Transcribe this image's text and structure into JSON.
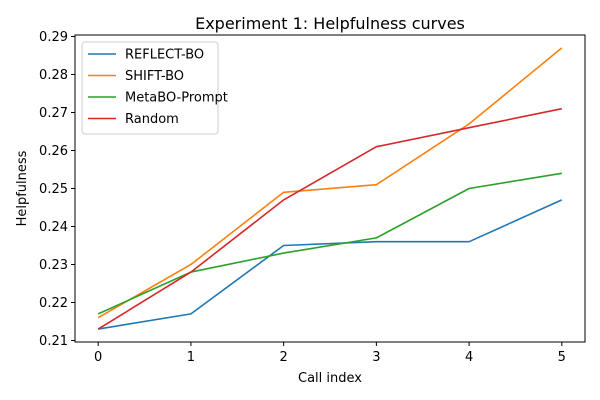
{
  "chart_data": {
    "type": "line",
    "title": "Experiment 1: Helpfulness curves",
    "xlabel": "Call index",
    "ylabel": "Helpfulness",
    "x": [
      0,
      1,
      2,
      3,
      4,
      5
    ],
    "xlim": [
      -0.25,
      5.25
    ],
    "ylim": [
      0.2096,
      0.2904
    ],
    "xticks": [
      0,
      1,
      2,
      3,
      4,
      5
    ],
    "yticks": [
      0.21,
      0.22,
      0.23,
      0.24,
      0.25,
      0.26,
      0.27,
      0.28,
      0.29
    ],
    "grid": false,
    "legend_position": "top-left",
    "series": [
      {
        "name": "REFLECT-BO",
        "color": "#1f77b4",
        "values": [
          0.213,
          0.217,
          0.235,
          0.236,
          0.236,
          0.247
        ]
      },
      {
        "name": "SHIFT-BO",
        "color": "#ff7f0e",
        "values": [
          0.216,
          0.23,
          0.249,
          0.251,
          0.267,
          0.287
        ]
      },
      {
        "name": "MetaBO-Prompt",
        "color": "#2ca02c",
        "values": [
          0.217,
          0.228,
          0.233,
          0.237,
          0.25,
          0.254
        ]
      },
      {
        "name": "Random",
        "color": "#d62728",
        "values": [
          0.213,
          0.228,
          0.247,
          0.261,
          0.266,
          0.271
        ]
      }
    ]
  }
}
